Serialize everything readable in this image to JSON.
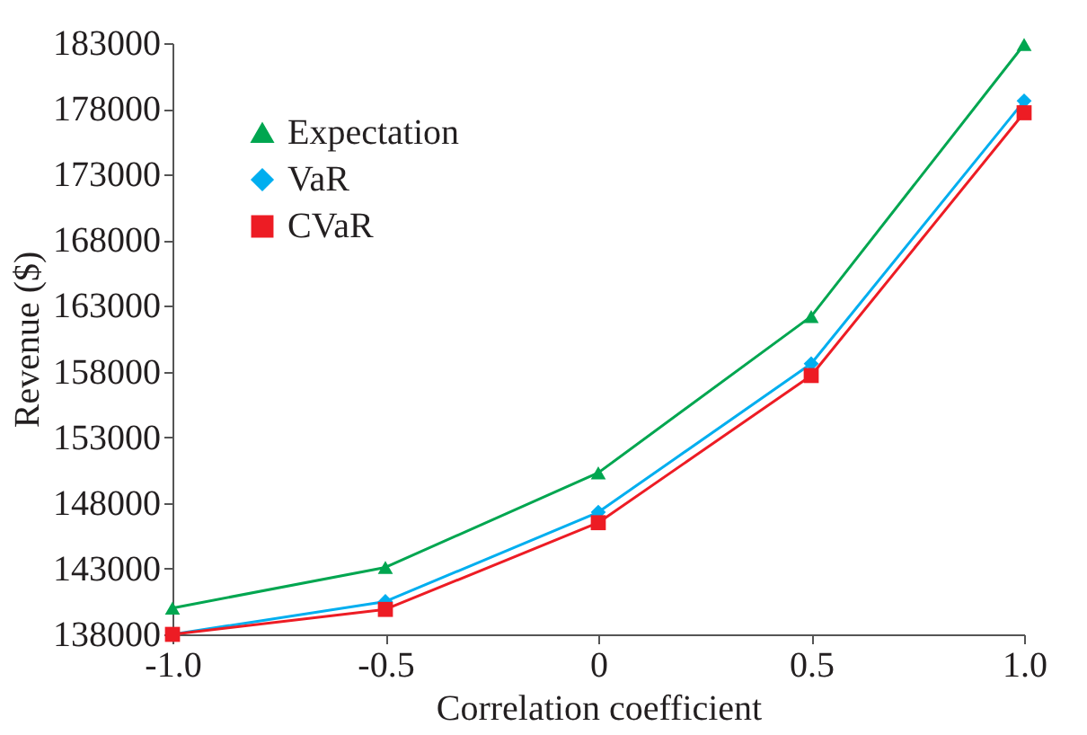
{
  "chart_data": {
    "type": "line",
    "xlabel": "Correlation coefficient",
    "ylabel": "Revenue ($)",
    "x": [
      -1.0,
      -0.5,
      0,
      0.5,
      1.0
    ],
    "series": [
      {
        "name": "Expectation",
        "color": "#00a650",
        "marker": "triangle",
        "values": [
          140000,
          143100,
          150300,
          162200,
          182900
        ]
      },
      {
        "name": "VaR",
        "color": "#00aeef",
        "marker": "diamond",
        "values": [
          138000,
          140500,
          147300,
          158600,
          178600
        ]
      },
      {
        "name": "CVaR",
        "color": "#ed1c24",
        "marker": "square",
        "values": [
          138000,
          139900,
          146500,
          157700,
          177700
        ]
      }
    ],
    "xlim": [
      -1.0,
      1.0
    ],
    "xticks": [
      {
        "value": -1.0,
        "label": "-1.0"
      },
      {
        "value": -0.5,
        "label": "-0.5"
      },
      0,
      0.5,
      {
        "value": 1.0,
        "label": "1.0"
      }
    ],
    "ylim": [
      138000,
      183000
    ],
    "yticks": [
      138000,
      143000,
      148000,
      153000,
      158000,
      163000,
      168000,
      173000,
      178000,
      183000
    ],
    "grid": false,
    "legend": "top left",
    "line_style": "solid"
  }
}
